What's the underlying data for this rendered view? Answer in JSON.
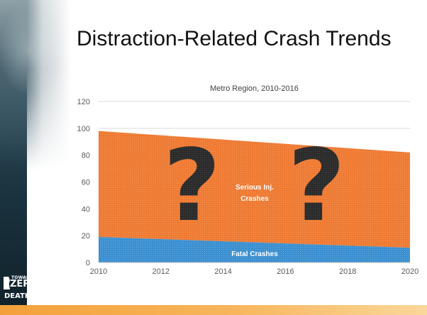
{
  "slide": {
    "title": "Distraction-Related Crash Trends",
    "logo": {
      "line1": "TOWARD",
      "line2": "ZERO",
      "line3": "DEATHS"
    }
  },
  "colors": {
    "serious": "#ee7a33",
    "fatal": "#3b8fd0",
    "gridline": "#d9d9d9",
    "question_mark": "#2b2b2b",
    "area_label": "#ffffff"
  },
  "chart_data": {
    "type": "area",
    "stacked": true,
    "title": "Metro Region, 2010-2016",
    "x_ticks": [
      2010,
      2012,
      2014,
      2016,
      2018,
      2020
    ],
    "y_ticks": [
      0,
      20,
      40,
      60,
      80,
      100,
      120
    ],
    "xlim": [
      2010,
      2020
    ],
    "ylim": [
      0,
      120
    ],
    "grid": "horizontal",
    "x": [
      2010,
      2020
    ],
    "series": [
      {
        "name": "Fatal Crashes",
        "values": [
          19,
          11
        ]
      },
      {
        "name": "Serious Inj. Crashes",
        "values": [
          79,
          71
        ]
      }
    ],
    "area_labels": {
      "fatal": "Fatal Crashes",
      "serious_line1": "Serious Inj.",
      "serious_line2": "Crashes"
    },
    "annotations": [
      "?",
      "?"
    ]
  }
}
